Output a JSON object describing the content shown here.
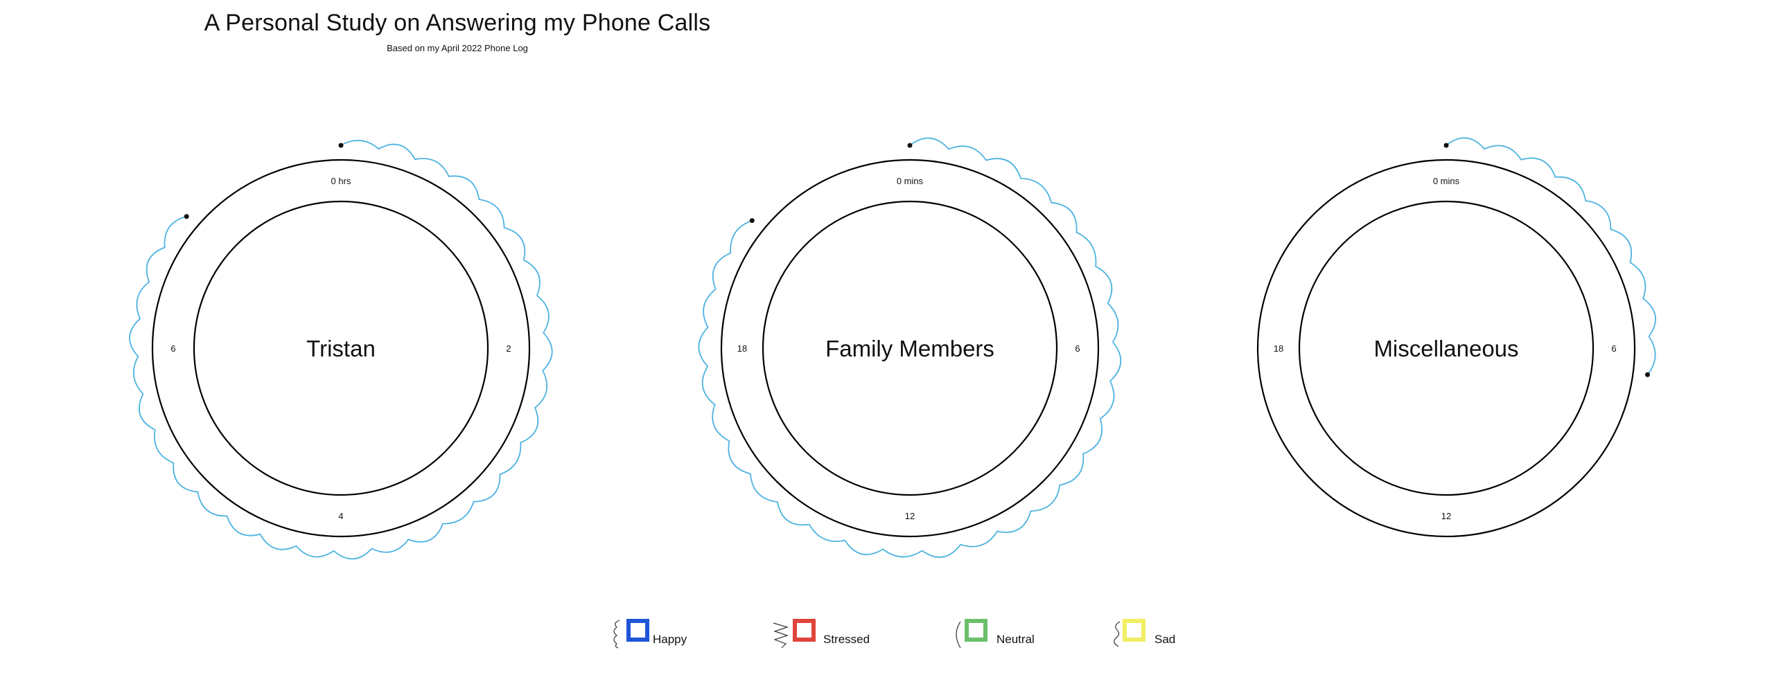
{
  "chart_data": {
    "type": "radial",
    "title": "A Personal Study on Answering my Phone Calls",
    "subtitle": "Based on my April 2022 Phone Log",
    "line_color": "#4fb3e0",
    "charts": [
      {
        "name": "Tristan",
        "tick_labels": [
          "0 hrs",
          "2",
          "4",
          "6"
        ],
        "clock_max": 8,
        "traces": [
          {
            "start": 0.0,
            "end": 6.9,
            "mood": "happy"
          }
        ]
      },
      {
        "name": "Family Members",
        "tick_labels": [
          "0 mins",
          "6",
          "12",
          "18"
        ],
        "clock_max": 24,
        "traces": [
          {
            "start": 0.0,
            "end": 20.6,
            "mood": "happy"
          }
        ]
      },
      {
        "name": "Miscellaneous",
        "tick_labels": [
          "0 mins",
          "6",
          "12",
          "18"
        ],
        "clock_max": 24,
        "traces": [
          {
            "start": 0.0,
            "end": 6.5,
            "mood": "happy"
          }
        ]
      }
    ]
  },
  "legend": [
    {
      "label": "Happy",
      "color": "#1f55d6",
      "glyph": "scallop-icon"
    },
    {
      "label": "Stressed",
      "color": "#e0443a",
      "glyph": "zigzag-icon"
    },
    {
      "label": "Neutral",
      "color": "#6cbf6a",
      "glyph": "arc-icon"
    },
    {
      "label": "Sad",
      "color": "#f1ee62",
      "glyph": "wave-icon"
    }
  ]
}
